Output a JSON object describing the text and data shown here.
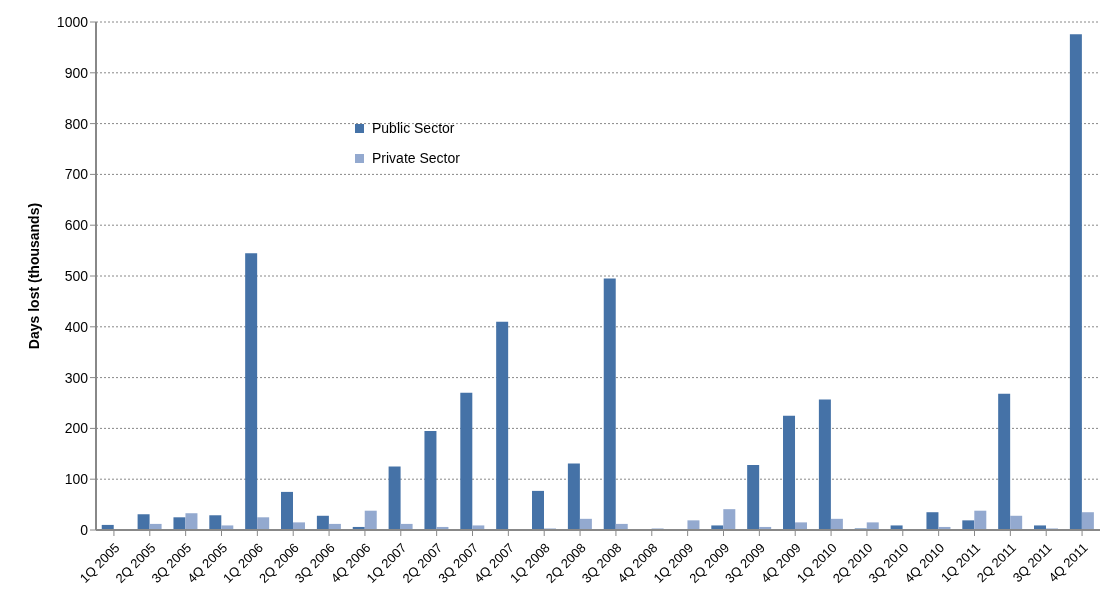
{
  "chart_data": {
    "type": "bar",
    "ylabel": "Days lost (thousands)",
    "categories": [
      "1Q 2005",
      "2Q 2005",
      "3Q 2005",
      "4Q 2005",
      "1Q 2006",
      "2Q 2006",
      "3Q 2006",
      "4Q 2006",
      "1Q 2007",
      "2Q 2007",
      "3Q 2007",
      "4Q 2007",
      "1Q 2008",
      "2Q 2008",
      "3Q 2008",
      "4Q 2008",
      "1Q 2009",
      "2Q 2009",
      "3Q 2009",
      "4Q 2009",
      "1Q 2010",
      "2Q 2010",
      "3Q 2010",
      "4Q 2010",
      "1Q 2011",
      "2Q 2011",
      "3Q 2011",
      "4Q 2011"
    ],
    "series": [
      {
        "name": "Public Sector",
        "color": "#4572a7",
        "values": [
          10,
          31,
          25,
          29,
          545,
          75,
          28,
          6,
          125,
          195,
          270,
          410,
          77,
          131,
          495,
          0,
          0,
          9,
          128,
          225,
          257,
          3,
          9,
          35,
          19,
          268,
          9,
          976
        ]
      },
      {
        "name": "Private Sector",
        "color": "#93a9cf",
        "values": [
          0,
          12,
          33,
          9,
          25,
          15,
          12,
          38,
          12,
          6,
          9,
          0,
          3,
          22,
          12,
          3,
          19,
          41,
          6,
          15,
          22,
          15,
          0,
          6,
          38,
          28,
          3,
          35
        ]
      }
    ],
    "ylim": [
      0,
      1000
    ],
    "yticks": [
      0,
      100,
      200,
      300,
      400,
      500,
      600,
      700,
      800,
      900,
      1000
    ],
    "grid": "y",
    "legend": "top"
  }
}
